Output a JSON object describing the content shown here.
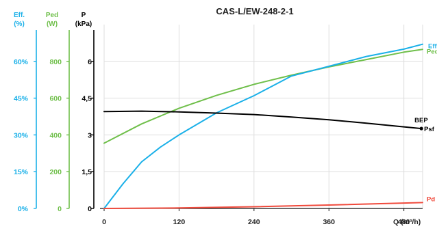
{
  "chart_data": {
    "type": "line",
    "title": "CAS-L/EW-248-2-1",
    "xlabel": "Q (m³/h)",
    "xlim": [
      0,
      510
    ],
    "x_ticks": [
      "0",
      "120",
      "240",
      "360",
      "480"
    ],
    "axes": [
      {
        "id": "eff",
        "title_lines": [
          "Eff.",
          "(%)"
        ],
        "color": "#1ab0e8",
        "ylim": [
          0,
          75
        ],
        "ticks": [
          "0%",
          "15%",
          "30%",
          "45%",
          "60%"
        ]
      },
      {
        "id": "ped",
        "title_lines": [
          "Ped",
          "(W)"
        ],
        "color": "#6fbf4a",
        "ylim": [
          0,
          1000
        ],
        "ticks": [
          "0",
          "200",
          "400",
          "600",
          "800"
        ]
      },
      {
        "id": "p",
        "title_lines": [
          "P",
          "(kPa)"
        ],
        "color": "#000000",
        "ylim": [
          0,
          7.5
        ],
        "ticks": [
          "0",
          "1,5",
          "3",
          "4,5",
          "6"
        ]
      }
    ],
    "series": [
      {
        "name": "Ped",
        "axis": "ped",
        "color": "#6fbf4a",
        "x": [
          0,
          60,
          120,
          180,
          240,
          300,
          360,
          420,
          480,
          510
        ],
        "y": [
          355,
          460,
          545,
          615,
          675,
          725,
          770,
          810,
          850,
          865
        ]
      },
      {
        "name": "Eff",
        "axis": "eff",
        "color": "#1ab0e8",
        "x": [
          0,
          30,
          60,
          90,
          120,
          180,
          240,
          300,
          360,
          420,
          480,
          510
        ],
        "y": [
          0,
          10,
          19,
          25,
          30,
          39,
          46,
          54,
          58,
          62,
          65,
          67
        ]
      },
      {
        "name": "Psf",
        "axis": "p",
        "color": "#000000",
        "x": [
          0,
          60,
          120,
          180,
          240,
          300,
          360,
          420,
          480,
          508
        ],
        "y": [
          3.95,
          3.97,
          3.94,
          3.89,
          3.83,
          3.73,
          3.62,
          3.48,
          3.33,
          3.26
        ]
      },
      {
        "name": "Pd",
        "axis": "p",
        "color": "#f04a3c",
        "x": [
          0,
          120,
          240,
          360,
          480,
          510
        ],
        "y": [
          0,
          0.02,
          0.07,
          0.14,
          0.22,
          0.24
        ]
      }
    ],
    "annotations": [
      {
        "text": "BEP",
        "axis": "p",
        "x": 508,
        "y": 3.26,
        "marker": true
      }
    ],
    "grid": true,
    "legend": "inline-end-labels"
  }
}
